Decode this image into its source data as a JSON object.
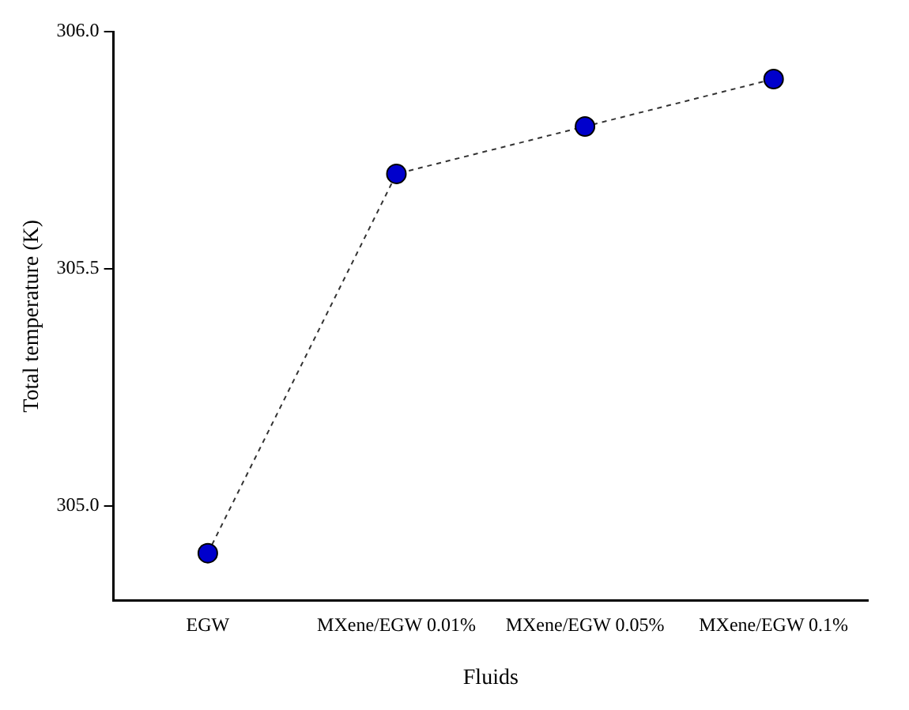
{
  "chart_data": {
    "type": "line",
    "xlabel": "Fluids",
    "ylabel": "Total temperature (K)",
    "categories": [
      "EGW",
      "MXene/EGW 0.01%",
      "MXene/EGW 0.05%",
      "MXene/EGW 0.1%"
    ],
    "series": [
      {
        "color": "#0000cc",
        "values": [
          304.9,
          305.7,
          305.8,
          305.9
        ]
      }
    ],
    "ylim": [
      304.8,
      306.0
    ],
    "yticks": [
      {
        "value": 305.0,
        "label": "305.0"
      },
      {
        "value": 305.5,
        "label": "305.5"
      },
      {
        "value": 306.0,
        "label": "306.0"
      }
    ],
    "grid": false,
    "legend": false,
    "marker": "circle",
    "line_style": "dashed"
  }
}
